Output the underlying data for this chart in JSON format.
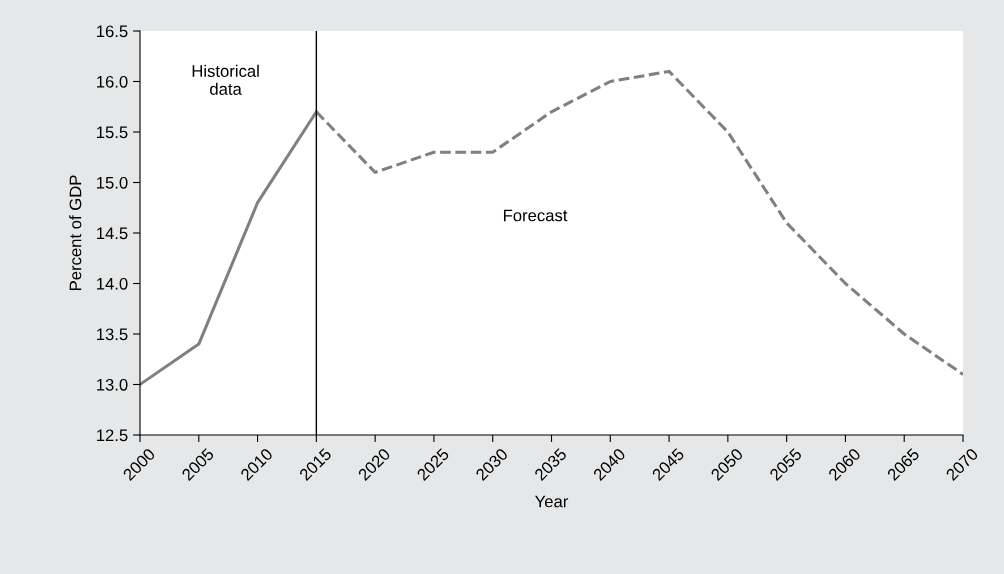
{
  "chart_data": {
    "type": "line",
    "xlabel": "Year",
    "ylabel": "Percent of GDP",
    "series": [
      {
        "color": "#808080",
        "line_style": "solid",
        "x": [
          2000,
          2005,
          2010,
          2015
        ],
        "values": [
          13.0,
          13.4,
          14.8,
          15.7
        ]
      },
      {
        "color": "#808080",
        "line_style": "dashed",
        "x": [
          2015,
          2020,
          2025,
          2030,
          2035,
          2040,
          2045,
          2050,
          2055,
          2060,
          2065,
          2070
        ],
        "values": [
          15.7,
          15.1,
          15.3,
          15.3,
          15.7,
          16.0,
          16.1,
          15.5,
          14.6,
          14.0,
          13.5,
          13.1
        ]
      }
    ],
    "xlim": [
      2000,
      2070
    ],
    "xticks": [
      2000,
      2005,
      2010,
      2015,
      2020,
      2025,
      2030,
      2035,
      2040,
      2045,
      2050,
      2055,
      2060,
      2065,
      2070
    ],
    "ylim": [
      12.5,
      16.5
    ],
    "yticks": [
      {
        "value": 12.5,
        "label": "12.5"
      },
      {
        "value": 13.0,
        "label": "13.0"
      },
      {
        "value": 13.5,
        "label": "13.5"
      },
      {
        "value": 14.0,
        "label": "14.0"
      },
      {
        "value": 14.5,
        "label": "14.5"
      },
      {
        "value": 15.0,
        "label": "15.0"
      },
      {
        "value": 15.5,
        "label": "15.5"
      },
      {
        "value": 16.0,
        "label": "16.0"
      },
      {
        "value": 16.5,
        "label": "16.5"
      }
    ],
    "ref_lines": [
      {
        "axis": "x",
        "value": 2015,
        "color": "#000000",
        "line_style": "solid"
      }
    ],
    "annotations": [
      "Historical\ndata",
      "Forecast"
    ],
    "grid": false,
    "legend": false,
    "marker": "none"
  }
}
